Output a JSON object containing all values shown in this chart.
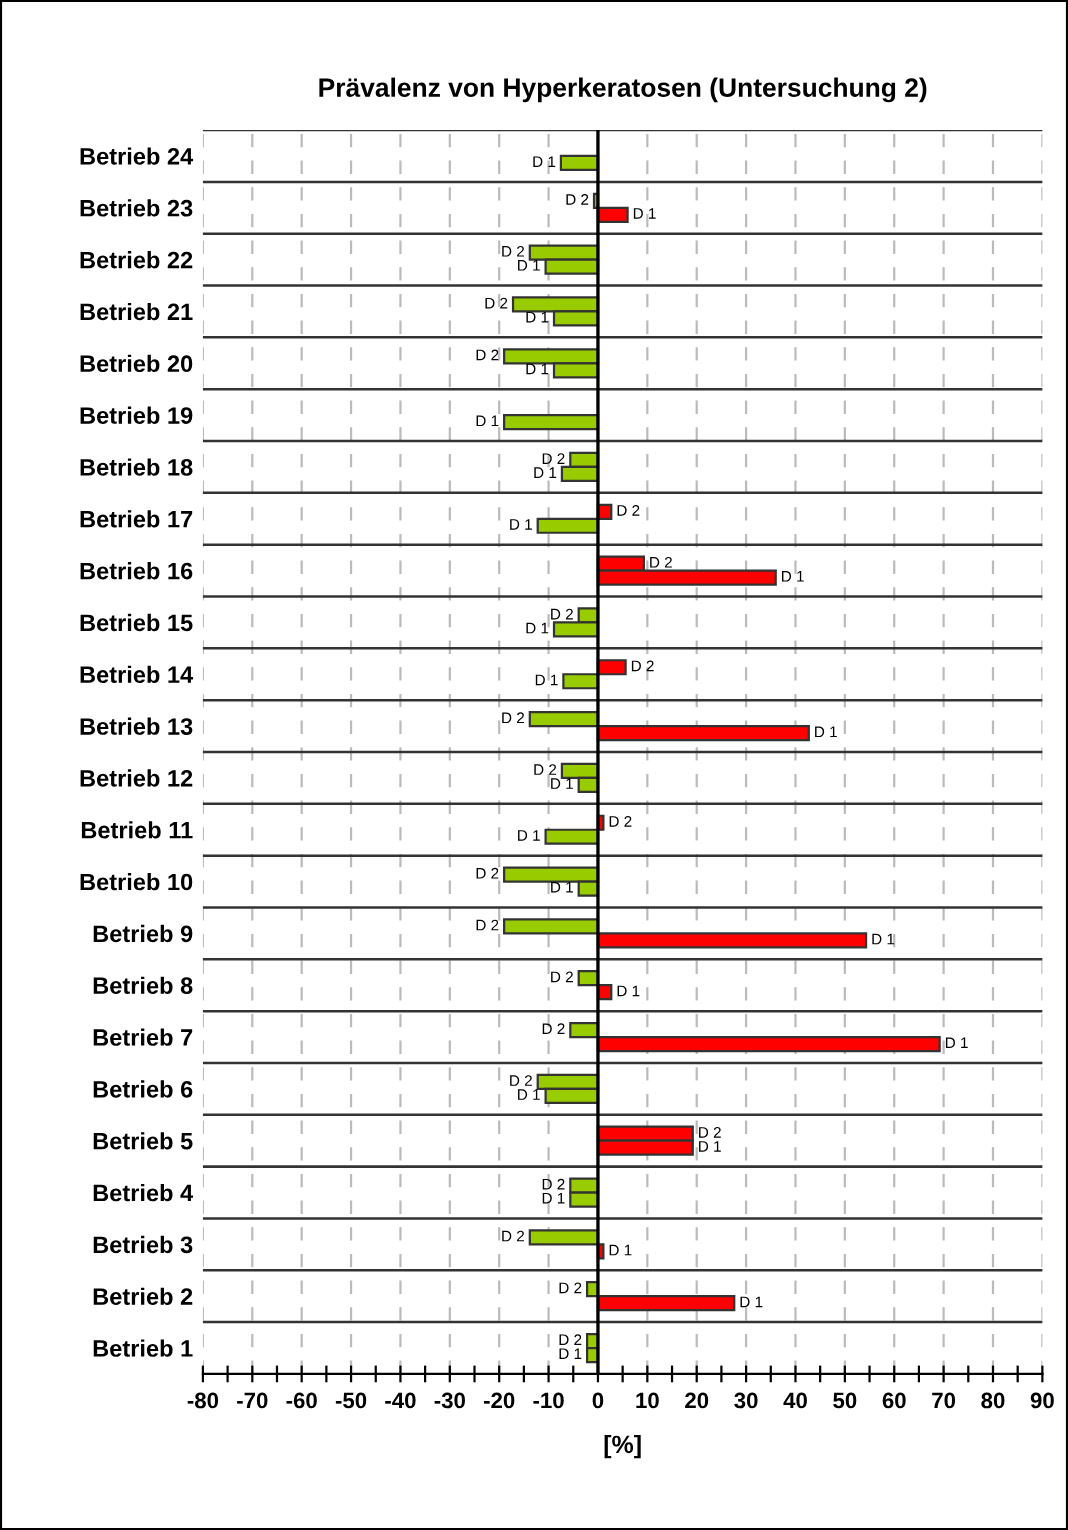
{
  "chart_data": {
    "type": "bar",
    "orientation": "horizontal",
    "title": "Prävalenz von Hyperkeratosen (Untersuchung 2)",
    "xlabel": "[%]",
    "categories": [
      "Betrieb 24",
      "Betrieb 23",
      "Betrieb 22",
      "Betrieb 21",
      "Betrieb 20",
      "Betrieb 19",
      "Betrieb 18",
      "Betrieb 17",
      "Betrieb 16",
      "Betrieb 15",
      "Betrieb 14",
      "Betrieb 13",
      "Betrieb 12",
      "Betrieb 11",
      "Betrieb 10",
      "Betrieb 9",
      "Betrieb 8",
      "Betrieb 7",
      "Betrieb 6",
      "Betrieb 5",
      "Betrieb 4",
      "Betrieb 3",
      "Betrieb 2",
      "Betrieb 1"
    ],
    "series": [
      {
        "name": "D 2",
        "values": [
          null,
          -0.8,
          -13.8,
          -17.2,
          -19.0,
          null,
          -5.6,
          2.7,
          9.3,
          -3.9,
          5.6,
          -13.8,
          -7.3,
          1.1,
          -19.0,
          -19.0,
          -3.9,
          -5.6,
          -12.2,
          19.2,
          -5.6,
          -13.8,
          -2.2,
          -2.2
        ],
        "colors": [
          null,
          "#99cc00",
          "#99cc00",
          "#99cc00",
          "#99cc00",
          null,
          "#99cc00",
          "#ff0000",
          "#ff0000",
          "#99cc00",
          "#ff0000",
          "#99cc00",
          "#99cc00",
          "#ff0000",
          "#99cc00",
          "#99cc00",
          "#99cc00",
          "#99cc00",
          "#99cc00",
          "#ff0000",
          "#99cc00",
          "#99cc00",
          "#99cc00",
          "#99cc00"
        ]
      },
      {
        "name": "D 1",
        "values": [
          -7.5,
          6.0,
          -10.6,
          -8.9,
          -8.9,
          -19.0,
          -7.3,
          -12.2,
          36.0,
          -8.9,
          -7.0,
          42.7,
          -3.9,
          -10.6,
          -3.9,
          54.3,
          2.7,
          69.2,
          -10.6,
          19.2,
          -5.6,
          1.1,
          27.6,
          -2.2
        ],
        "colors": [
          "#99cc00",
          "#ff0000",
          "#99cc00",
          "#99cc00",
          "#99cc00",
          "#99cc00",
          "#99cc00",
          "#99cc00",
          "#ff0000",
          "#99cc00",
          "#99cc00",
          "#ff0000",
          "#99cc00",
          "#99cc00",
          "#99cc00",
          "#ff0000",
          "#ff0000",
          "#ff0000",
          "#99cc00",
          "#ff0000",
          "#99cc00",
          "#ff0000",
          "#ff0000",
          "#99cc00"
        ]
      }
    ],
    "xlim": [
      -80,
      90
    ],
    "xticks": [
      -80,
      {
        "value": -75,
        "label": null
      },
      -70,
      {
        "value": -65,
        "label": null
      },
      -60,
      {
        "value": -55,
        "label": null
      },
      -50,
      {
        "value": -45,
        "label": null
      },
      -40,
      {
        "value": -35,
        "label": null
      },
      -30,
      {
        "value": -25,
        "label": null
      },
      -20,
      {
        "value": -15,
        "label": null
      },
      -10,
      {
        "value": -5,
        "label": null
      },
      0,
      {
        "value": 5,
        "label": null
      },
      10,
      {
        "value": 15,
        "label": null
      },
      20,
      {
        "value": 25,
        "label": null
      },
      30,
      {
        "value": 35,
        "label": null
      },
      40,
      {
        "value": 45,
        "label": null
      },
      50,
      {
        "value": 55,
        "label": null
      },
      60,
      {
        "value": 65,
        "label": null
      },
      70,
      {
        "value": 75,
        "label": null
      },
      80,
      {
        "value": 85,
        "label": null
      },
      90
    ],
    "ref_lines": [
      {
        "axis": "x",
        "value": 0,
        "color": "#000000"
      }
    ],
    "grid": true
  }
}
